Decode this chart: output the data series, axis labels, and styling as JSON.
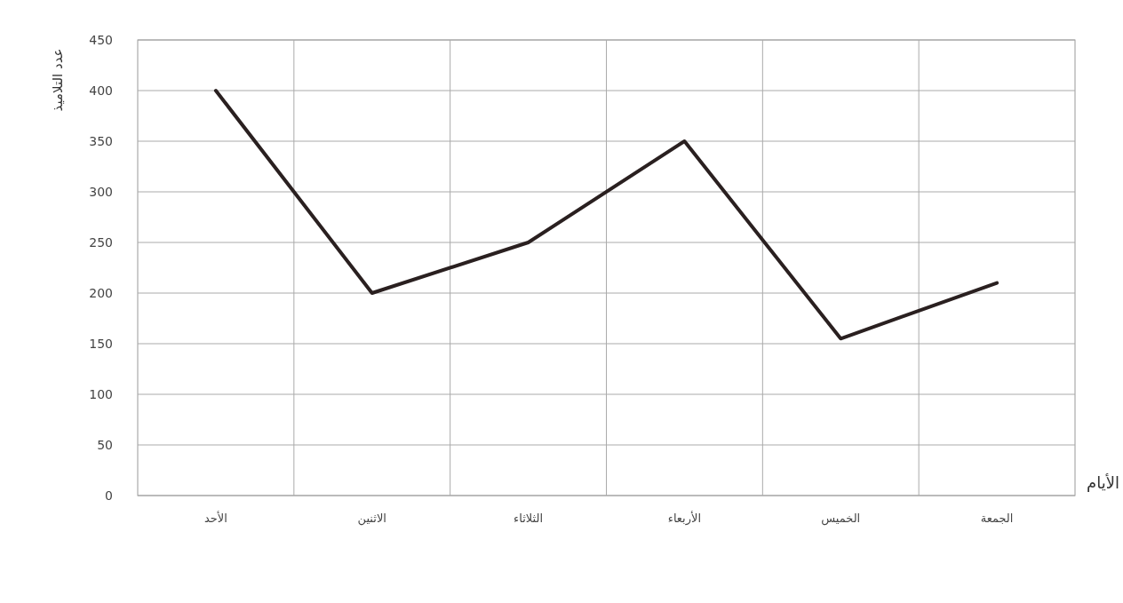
{
  "chart_data": {
    "type": "line",
    "xlabel": "الأيام",
    "ylabel": "عدد التلاميذ",
    "categories": [
      "الأحد",
      "الاثنين",
      "الثلاثاء",
      "الأربعاء",
      "الخميس",
      "الجمعة"
    ],
    "series": [
      {
        "color": "#2a2020",
        "values": [
          400,
          200,
          250,
          350,
          155,
          210
        ]
      }
    ],
    "ylim": [
      0,
      450
    ],
    "yticks": [
      0,
      50,
      100,
      150,
      200,
      250,
      300,
      350,
      400,
      450
    ],
    "grid": true,
    "marker": "none",
    "line_style": "solid"
  }
}
